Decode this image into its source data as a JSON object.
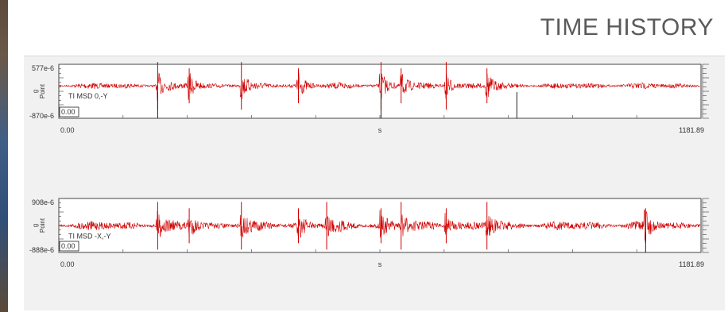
{
  "page": {
    "title": "TIME HISTORY"
  },
  "colors": {
    "trace": "#d10000",
    "frame": "#444444",
    "panel": "#f1f1f1",
    "ref": "#222222"
  },
  "chart_data": [
    {
      "type": "line",
      "series": [
        {
          "label": "TI MSD 0,-Y"
        }
      ],
      "x_unit": "s",
      "xlim": [
        0.0,
        1181.89
      ],
      "x_tick_labels": [
        "0.00",
        "1181.89"
      ],
      "ylim": [
        -0.00087,
        0.000577
      ],
      "y_tick_labels": [
        "577e-6",
        "-870e-6"
      ],
      "y_axis_label": "g\nPoint",
      "cursor_readout": "0.00",
      "spike_times_s": [
        182,
        240,
        336,
        441,
        593,
        630,
        713,
        788
      ],
      "reference_marker_times_s": [
        182,
        593,
        843
      ]
    },
    {
      "type": "line",
      "series": [
        {
          "label": "TI MSD -X,-Y"
        }
      ],
      "x_unit": "s",
      "xlim": [
        0.0,
        1181.89
      ],
      "x_tick_labels": [
        "0.00",
        "1181.89"
      ],
      "ylim": [
        -0.000888,
        0.000908
      ],
      "y_tick_labels": [
        "908e-6",
        "-888e-6"
      ],
      "y_axis_label": "g\nPoint",
      "cursor_readout": "0.00",
      "spike_times_s": [
        182,
        240,
        336,
        441,
        493,
        593,
        630,
        713,
        788,
        1080
      ],
      "reference_marker_times_s": [
        1080
      ]
    }
  ]
}
